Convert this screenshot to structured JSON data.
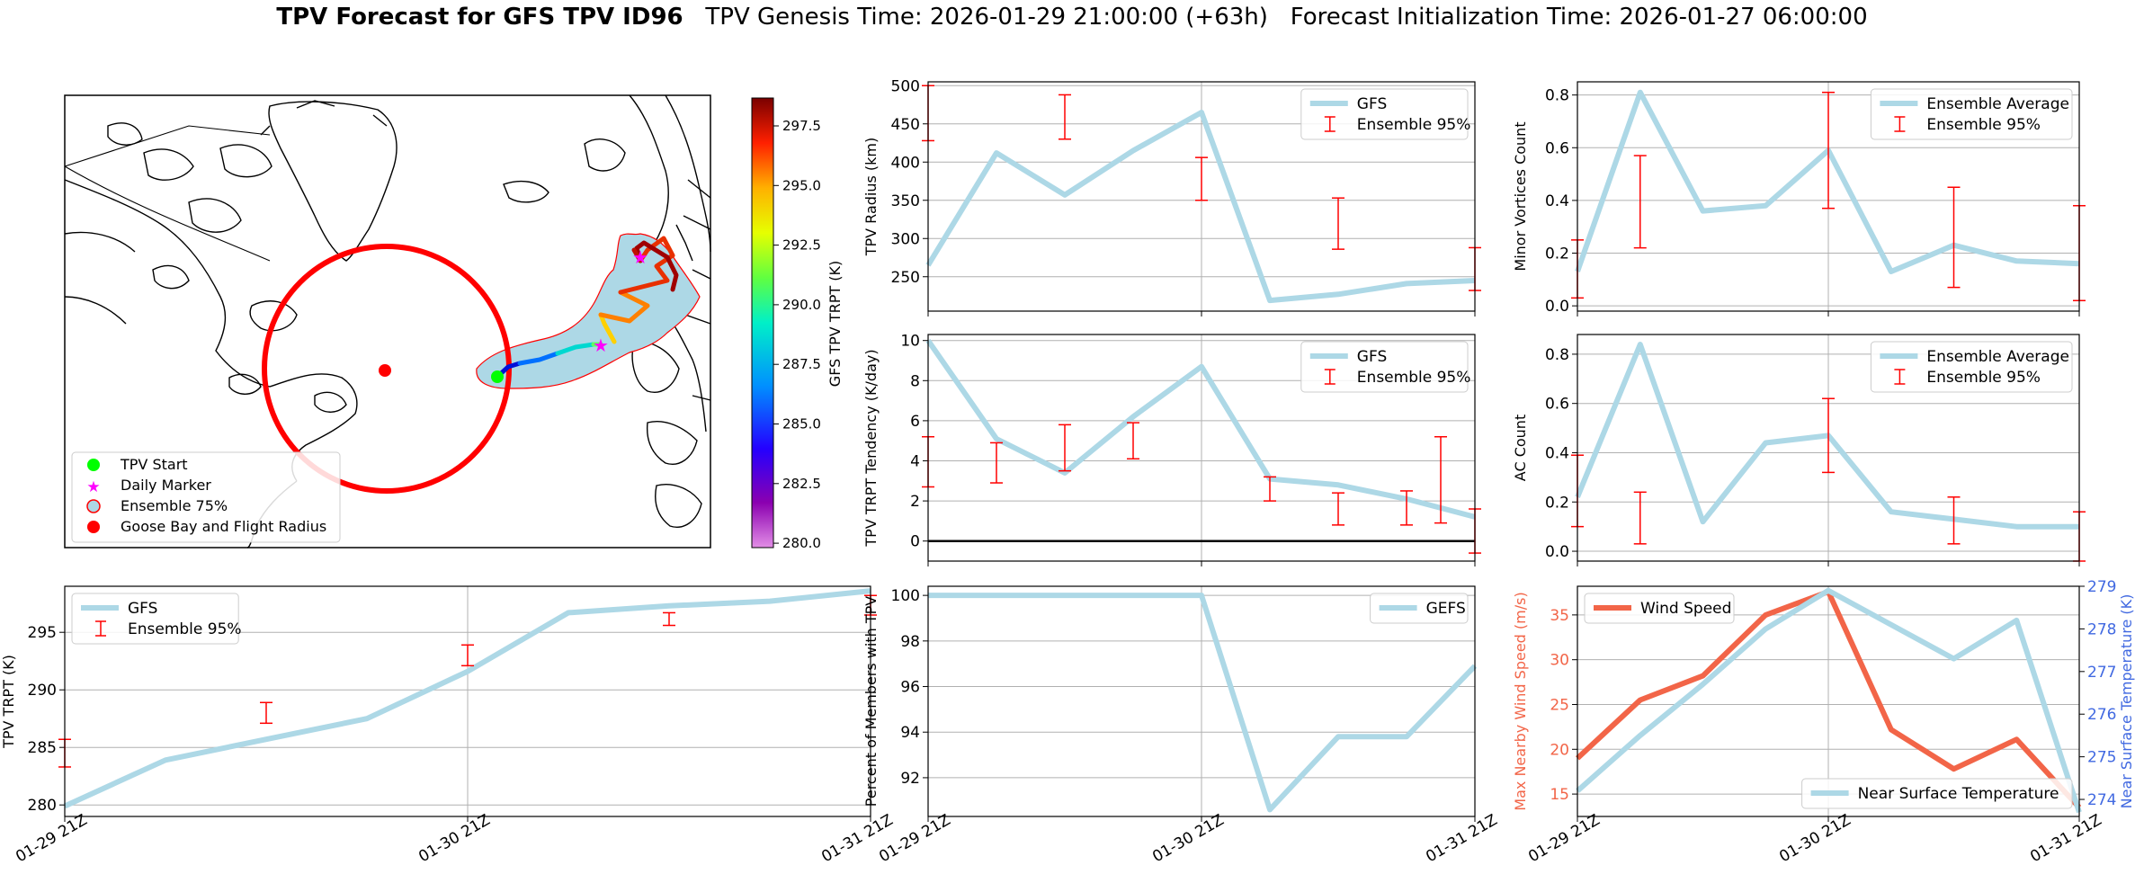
{
  "header": {
    "bold": "TPV Forecast for GFS TPV ID96",
    "genesis": "TPV Genesis Time: 2026-01-29 21:00:00 (+63h)",
    "init": "Forecast Initialization Time: 2026-01-27 06:00:00"
  },
  "colors": {
    "gfs": "#add8e6",
    "err": "#ff0000",
    "wind": "#f26548",
    "temp_axis": "#4169e1",
    "black": "#000000"
  },
  "map": {
    "legend": [
      "TPV Start",
      "Daily Marker",
      "Ensemble 75%",
      "Goose Bay and Flight Radius"
    ],
    "colorbar": {
      "label": "GFS TPV TRPT (K)",
      "ticks": [
        "297.5",
        "295.0",
        "292.5",
        "290.0",
        "287.5",
        "285.0",
        "282.5",
        "280.0"
      ]
    }
  },
  "chart_data": [
    {
      "id": "radius",
      "type": "line",
      "ylabel": "TPV Radius (km)",
      "ylim": [
        205,
        505
      ],
      "yticks": [
        250,
        300,
        350,
        400,
        450,
        500
      ],
      "x_lines": [
        0.5
      ],
      "grid": true,
      "series": [
        {
          "name": "GFS",
          "values": [
            265,
            412,
            357,
            415,
            465,
            219,
            227,
            241,
            245
          ]
        }
      ],
      "errors": [
        [
          0.0,
          428,
          500
        ],
        [
          0.25,
          430,
          488
        ],
        [
          0.5,
          350,
          406
        ],
        [
          0.75,
          286,
          353
        ],
        [
          1.0,
          232,
          288
        ]
      ],
      "legend": [
        "GFS",
        "Ensemble 95%"
      ],
      "legend_pos": "top-right",
      "xticklabels": []
    },
    {
      "id": "minor",
      "type": "line",
      "ylabel": "Minor Vortices Count",
      "ylim": [
        -0.02,
        0.85
      ],
      "yticks": [
        0.0,
        0.2,
        0.4,
        0.6,
        0.8
      ],
      "yfmt": 1,
      "x_lines": [
        0.5
      ],
      "grid": true,
      "series": [
        {
          "name": "Ensemble Average",
          "values": [
            0.13,
            0.81,
            0.36,
            0.38,
            0.59,
            0.13,
            0.23,
            0.17,
            0.16
          ]
        }
      ],
      "errors": [
        [
          0.0,
          0.03,
          0.25
        ],
        [
          0.125,
          0.22,
          0.57
        ],
        [
          0.5,
          0.37,
          0.81
        ],
        [
          0.75,
          0.07,
          0.45
        ],
        [
          1.0,
          0.02,
          0.38
        ]
      ],
      "legend": [
        "Ensemble Average",
        "Ensemble 95%"
      ],
      "legend_pos": "top-right",
      "xticklabels": []
    },
    {
      "id": "tendency",
      "type": "line",
      "ylabel": "TPV TRPT Tendency (K/day)",
      "ylim": [
        -1,
        10.3
      ],
      "yticks": [
        0,
        2,
        4,
        6,
        8,
        10
      ],
      "x_lines": [
        0.5
      ],
      "grid": true,
      "zero_line": true,
      "series": [
        {
          "name": "GFS",
          "values": [
            10.0,
            5.1,
            3.4,
            6.2,
            8.7,
            3.1,
            2.8,
            2.1,
            1.2
          ]
        }
      ],
      "errors": [
        [
          0.0,
          2.7,
          5.2
        ],
        [
          0.125,
          2.9,
          4.9
        ],
        [
          0.25,
          3.5,
          5.8
        ],
        [
          0.375,
          4.1,
          5.9
        ],
        [
          0.625,
          2.0,
          3.2
        ],
        [
          0.75,
          0.8,
          2.4
        ],
        [
          0.875,
          0.8,
          2.5
        ],
        [
          0.9375,
          0.9,
          5.2
        ],
        [
          1.0,
          -0.6,
          1.6
        ]
      ],
      "legend": [
        "GFS",
        "Ensemble 95%"
      ],
      "legend_pos": "top-right",
      "xticklabels": []
    },
    {
      "id": "ac",
      "type": "line",
      "ylabel": "AC Count",
      "ylim": [
        -0.04,
        0.88
      ],
      "yticks": [
        0.0,
        0.2,
        0.4,
        0.6,
        0.8
      ],
      "yfmt": 1,
      "x_lines": [
        0.5
      ],
      "grid": true,
      "series": [
        {
          "name": "Ensemble Average",
          "values": [
            0.22,
            0.84,
            0.12,
            0.44,
            0.47,
            0.16,
            0.13,
            0.1,
            0.1
          ]
        }
      ],
      "errors": [
        [
          0.0,
          0.1,
          0.39
        ],
        [
          0.125,
          0.03,
          0.24
        ],
        [
          0.5,
          0.32,
          0.62
        ],
        [
          0.75,
          0.03,
          0.22
        ],
        [
          1.0,
          -0.04,
          0.16
        ]
      ],
      "legend": [
        "Ensemble Average",
        "Ensemble 95%"
      ],
      "legend_pos": "top-right",
      "xticklabels": []
    },
    {
      "id": "trpt",
      "type": "line",
      "ylabel": "TPV TRPT (K)",
      "ylim": [
        279,
        299
      ],
      "yticks": [
        280,
        285,
        290,
        295
      ],
      "x_lines": [
        0.5
      ],
      "grid": true,
      "series": [
        {
          "name": "GFS",
          "values": [
            279.9,
            283.9,
            285.7,
            287.5,
            291.6,
            296.7,
            297.3,
            297.7,
            298.6
          ]
        }
      ],
      "errors": [
        [
          0.0,
          283.3,
          285.7
        ],
        [
          0.25,
          287.1,
          288.9
        ],
        [
          0.5,
          292.1,
          293.9
        ],
        [
          0.75,
          295.6,
          296.7
        ],
        [
          1.0,
          296.5,
          298.2
        ]
      ],
      "legend": [
        "GFS",
        "Ensemble 95%"
      ],
      "legend_pos": "top-left",
      "xticklabels": [
        "01-29 21Z",
        "01-30 21Z",
        "01-31 21Z"
      ]
    },
    {
      "id": "percent",
      "type": "line",
      "ylabel": "Percent of Members with TPV",
      "ylim": [
        90.3,
        100.4
      ],
      "yticks": [
        92,
        94,
        96,
        98,
        100
      ],
      "x_lines": [
        0.5
      ],
      "grid": true,
      "series": [
        {
          "name": "GEFS",
          "values": [
            100,
            100,
            100,
            100,
            100,
            90.6,
            93.8,
            93.8,
            96.9
          ]
        }
      ],
      "errors": [],
      "legend": [
        "GEFS"
      ],
      "legend_pos": "top-right",
      "xticklabels": [
        "01-29 21Z",
        "01-30 21Z",
        "01-31 21Z"
      ]
    },
    {
      "id": "wind",
      "type": "line",
      "ylabel": "Max Nearby Wind Speed (m/s)",
      "ylabel2": "Near Surface Temperature (K)",
      "ylim": [
        12.5,
        38.2
      ],
      "ylim2": [
        273.6,
        279.0
      ],
      "yticks": [
        15,
        20,
        25,
        30,
        35
      ],
      "yticks2": [
        274,
        275,
        276,
        277,
        278,
        279
      ],
      "x_lines": [
        0.5
      ],
      "grid": true,
      "series": [
        {
          "name": "Wind Speed",
          "values": [
            19.0,
            25.5,
            28.2,
            35.0,
            37.6,
            22.2,
            17.8,
            21.1,
            13.5
          ],
          "axis": "left"
        },
        {
          "name": "Near Surface Temperature",
          "values": [
            274.2,
            275.5,
            276.7,
            278.0,
            278.9,
            278.1,
            277.3,
            278.2,
            273.7
          ],
          "axis": "right"
        }
      ],
      "errors": [],
      "legend": [
        "Wind Speed"
      ],
      "legend2": [
        "Near Surface Temperature"
      ],
      "xticklabels": [
        "01-29 21Z",
        "01-30 21Z",
        "01-31 21Z"
      ]
    }
  ]
}
